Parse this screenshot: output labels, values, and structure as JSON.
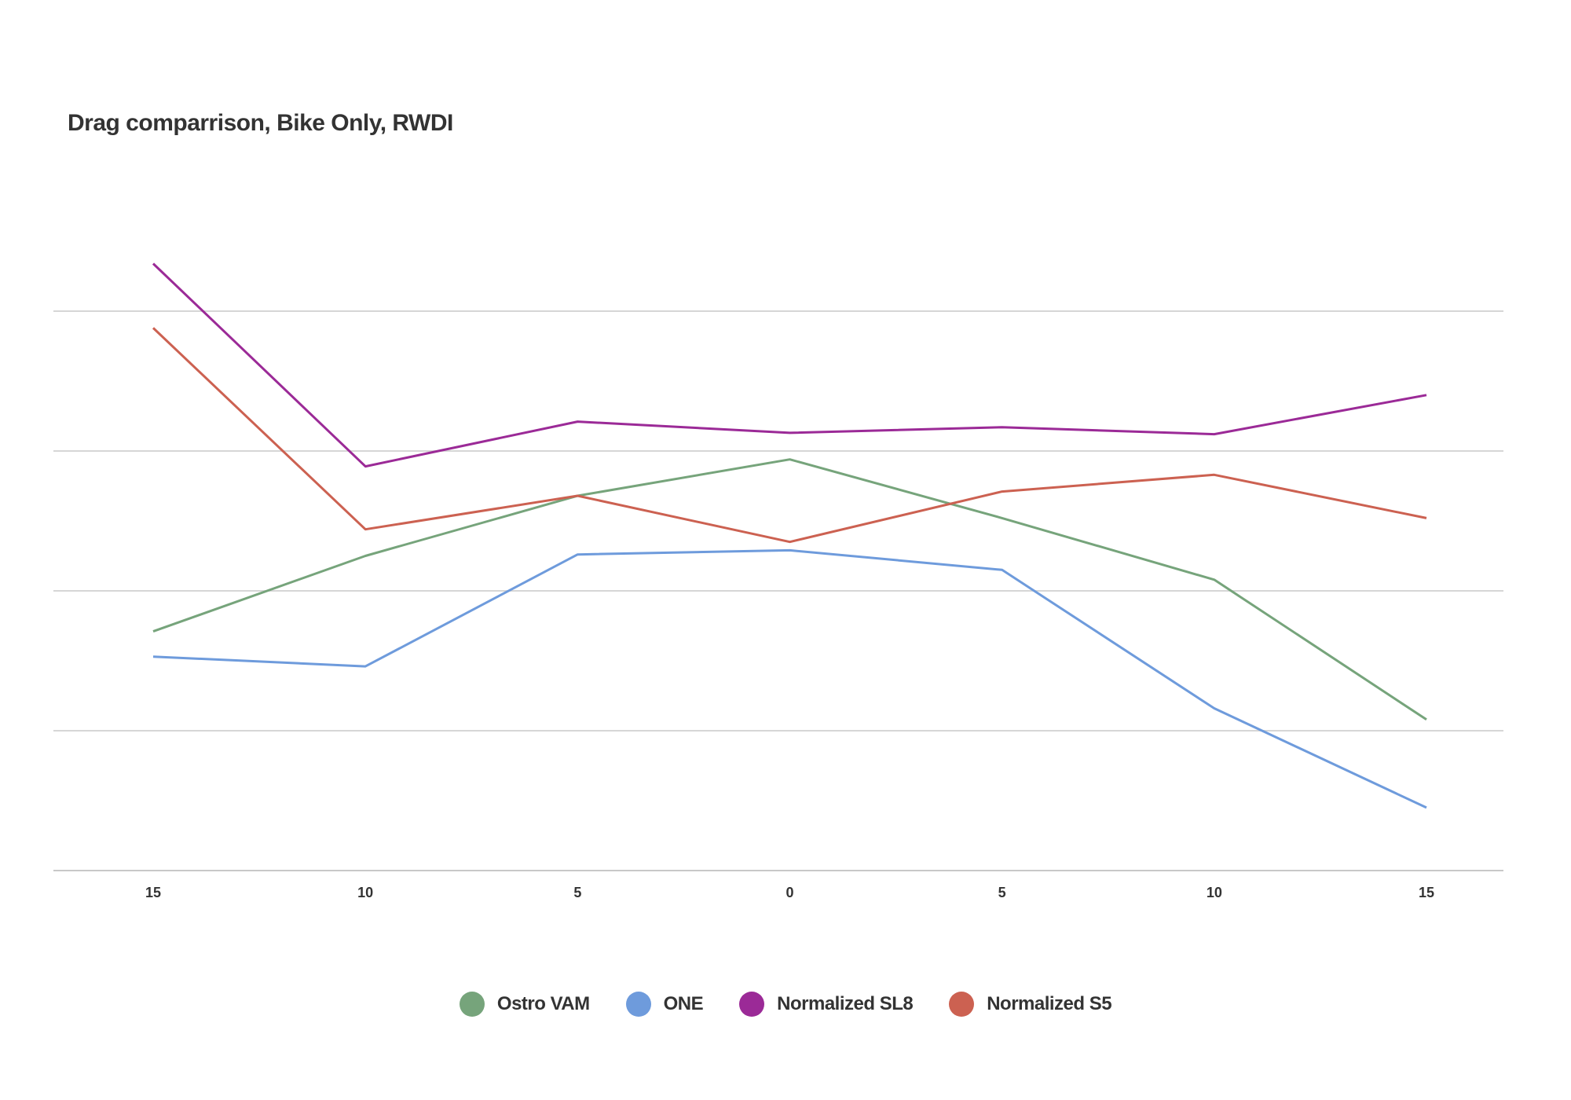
{
  "chart_data": {
    "type": "line",
    "title": "Drag comparrison, Bike Only, RWDI",
    "categories": [
      "15",
      "10",
      "5",
      "0",
      "5",
      "10",
      "15"
    ],
    "xlabel": "",
    "ylabel": "",
    "ylim": [
      0,
      4
    ],
    "grid": true,
    "y_gridlines": [
      0,
      1,
      2,
      3,
      4
    ],
    "y_tick_labels_shown": false,
    "legend_position": "bottom",
    "series": [
      {
        "name": "Ostro VAM",
        "color": "#76a47b",
        "values": [
          1.71,
          2.25,
          2.68,
          2.94,
          2.52,
          2.08,
          1.08
        ]
      },
      {
        "name": "ONE",
        "color": "#6e9bdc",
        "values": [
          1.53,
          1.46,
          2.26,
          2.29,
          2.15,
          1.16,
          0.45
        ]
      },
      {
        "name": "Normalized SL8",
        "color": "#9b2a97",
        "values": [
          4.34,
          2.89,
          3.21,
          3.13,
          3.17,
          3.12,
          3.4
        ]
      },
      {
        "name": "Normalized S5",
        "color": "#cc6151",
        "values": [
          3.88,
          2.44,
          2.68,
          2.35,
          2.71,
          2.83,
          2.52
        ]
      }
    ]
  }
}
